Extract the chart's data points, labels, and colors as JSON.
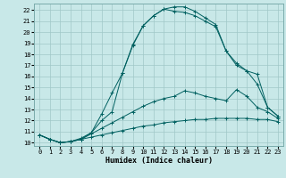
{
  "xlabel": "Humidex (Indice chaleur)",
  "xlim_min": -0.5,
  "xlim_max": 23.5,
  "ylim_min": 9.7,
  "ylim_max": 22.6,
  "xticks": [
    0,
    1,
    2,
    3,
    4,
    5,
    6,
    7,
    8,
    9,
    10,
    11,
    12,
    13,
    14,
    15,
    16,
    17,
    18,
    19,
    20,
    21,
    22,
    23
  ],
  "yticks": [
    10,
    11,
    12,
    13,
    14,
    15,
    16,
    17,
    18,
    19,
    20,
    21,
    22
  ],
  "bg_color": "#c8e8e8",
  "line_color": "#006060",
  "grid_color": "#a0c8c8",
  "line1": [
    10.7,
    10.3,
    10.0,
    10.1,
    10.3,
    10.9,
    12.6,
    14.5,
    16.3,
    18.8,
    20.6,
    21.5,
    22.1,
    22.3,
    22.3,
    21.9,
    21.3,
    20.7,
    18.3,
    17.0,
    16.5,
    16.2,
    13.2,
    12.4
  ],
  "line2": [
    10.7,
    10.3,
    10.0,
    10.1,
    10.4,
    10.9,
    12.0,
    12.8,
    16.3,
    18.9,
    20.6,
    21.5,
    22.1,
    21.9,
    21.8,
    21.5,
    21.0,
    20.5,
    18.3,
    17.2,
    16.5,
    15.3,
    13.2,
    12.4
  ],
  "line3": [
    10.7,
    10.3,
    10.0,
    10.1,
    10.3,
    10.8,
    11.3,
    11.8,
    12.3,
    12.8,
    13.3,
    13.7,
    14.0,
    14.2,
    14.7,
    14.5,
    14.2,
    14.0,
    13.8,
    14.8,
    14.2,
    13.2,
    12.8,
    12.2
  ],
  "line4": [
    10.7,
    10.3,
    10.0,
    10.1,
    10.3,
    10.5,
    10.7,
    10.9,
    11.1,
    11.3,
    11.5,
    11.6,
    11.8,
    11.9,
    12.0,
    12.1,
    12.1,
    12.2,
    12.2,
    12.2,
    12.2,
    12.1,
    12.1,
    11.9
  ]
}
